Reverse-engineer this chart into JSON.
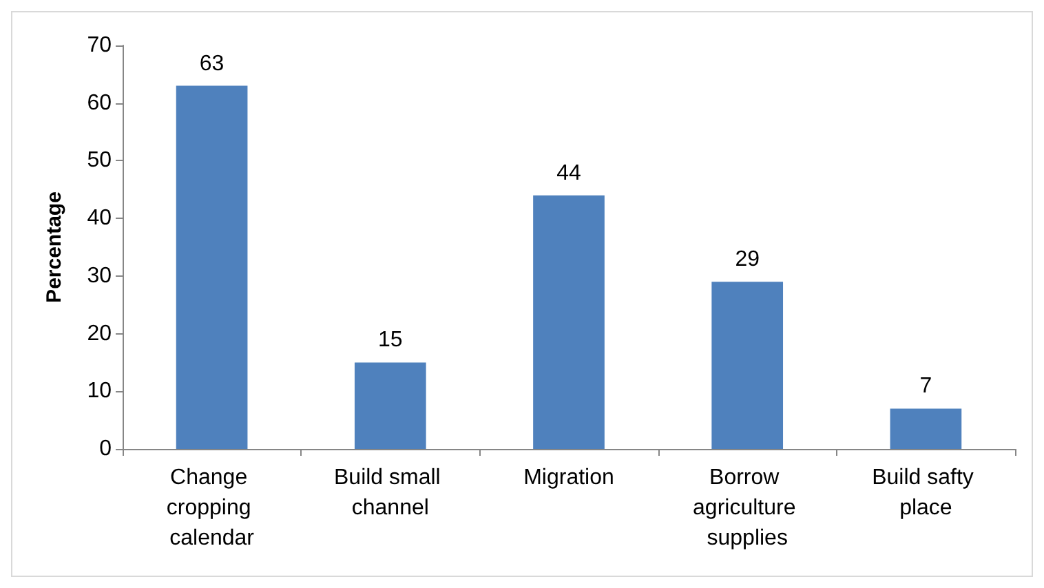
{
  "chart_data": {
    "type": "bar",
    "ylabel": "Percentage",
    "categories": [
      "Change cropping calendar",
      "Build small channel",
      "Migration",
      "Borrow agriculture supplies",
      "Build safty place"
    ],
    "values": [
      63,
      15,
      44,
      29,
      7
    ],
    "color": "#4f81bd",
    "ylim": [
      0,
      70
    ],
    "yticks": [
      0,
      10,
      20,
      30,
      40,
      50,
      60,
      70
    ],
    "grid": false,
    "data_labels": true
  }
}
